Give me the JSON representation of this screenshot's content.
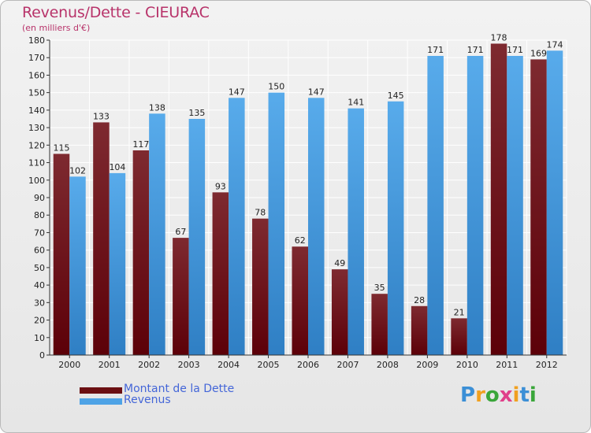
{
  "header": {
    "title": "Revenus/Dette - CIEURAC",
    "subtitle": "(en milliers d'€)"
  },
  "chart_data": {
    "type": "bar",
    "categories": [
      "2000",
      "2001",
      "2002",
      "2003",
      "2004",
      "2005",
      "2006",
      "2007",
      "2008",
      "2009",
      "2010",
      "2011",
      "2012"
    ],
    "series": [
      {
        "name": "Montant de la Dette",
        "color": "#7a1a1f",
        "values": [
          115,
          133,
          117,
          67,
          93,
          78,
          62,
          49,
          35,
          28,
          21,
          178,
          169
        ]
      },
      {
        "name": "Revenus",
        "color": "#4ea3e6",
        "values": [
          102,
          104,
          138,
          135,
          147,
          150,
          147,
          141,
          145,
          171,
          171,
          171,
          174
        ]
      }
    ],
    "ylim": [
      0,
      180
    ],
    "yticks": [
      0,
      10,
      20,
      30,
      40,
      50,
      60,
      70,
      80,
      90,
      100,
      110,
      120,
      130,
      140,
      150,
      160,
      170,
      180
    ],
    "grid": true,
    "legend_position": "bottom-left"
  },
  "legend": [
    {
      "label": "Montant de la Dette",
      "color": "#6b0f12"
    },
    {
      "label": "Revenus",
      "color": "#4ea3e6"
    }
  ],
  "logo": {
    "letters": [
      "P",
      "r",
      "o",
      "x",
      "i",
      "t",
      "i"
    ],
    "colors": [
      "#3b8fd6",
      "#f0a020",
      "#3aa63a",
      "#e0408a",
      "#f0a020",
      "#3b8fd6",
      "#3aa63a"
    ]
  }
}
